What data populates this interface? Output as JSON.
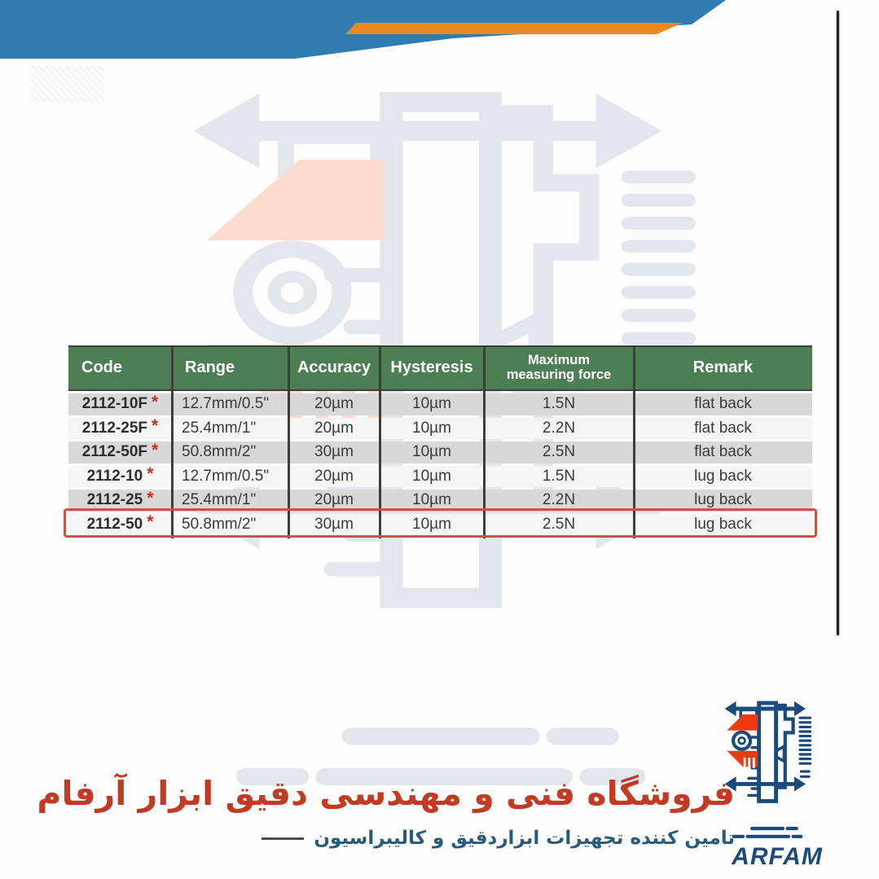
{
  "spec_table": {
    "columns": [
      {
        "key": "code",
        "label": "Code"
      },
      {
        "key": "range",
        "label": "Range"
      },
      {
        "key": "accuracy",
        "label": "Accuracy"
      },
      {
        "key": "hysteresis",
        "label": "Hysteresis"
      },
      {
        "key": "force",
        "label": "Maximum measuring force"
      },
      {
        "key": "remark",
        "label": "Remark"
      }
    ],
    "code_star": "*",
    "rows": [
      {
        "code": "2112-10F",
        "range": "12.7mm/0.5\"",
        "accuracy": "20µm",
        "hysteresis": "10µm",
        "force": "1.5N",
        "remark": "flat back",
        "highlighted": false
      },
      {
        "code": "2112-25F",
        "range": "25.4mm/1\"",
        "accuracy": "20µm",
        "hysteresis": "10µm",
        "force": "2.2N",
        "remark": "flat back",
        "highlighted": false
      },
      {
        "code": "2112-50F",
        "range": "50.8mm/2\"",
        "accuracy": "30µm",
        "hysteresis": "10µm",
        "force": "2.5N",
        "remark": "flat back",
        "highlighted": false
      },
      {
        "code": "2112-10",
        "range": "12.7mm/0.5\"",
        "accuracy": "20µm",
        "hysteresis": "10µm",
        "force": "1.5N",
        "remark": "lug back",
        "highlighted": false
      },
      {
        "code": "2112-25",
        "range": "25.4mm/1\"",
        "accuracy": "20µm",
        "hysteresis": "10µm",
        "force": "2.2N",
        "remark": "lug back",
        "highlighted": false
      },
      {
        "code": "2112-50",
        "range": "50.8mm/2\"",
        "accuracy": "30µm",
        "hysteresis": "10µm",
        "force": "2.5N",
        "remark": "lug back",
        "highlighted": true
      }
    ]
  },
  "footer": {
    "store_title_fa": "فروشگاه فنی و مهندسی دقیق ابزار آرفام",
    "store_subtitle_fa": "تامین کننده تجهیزات ابزاردقیق و کالیبراسیون",
    "brand_name": "ARFAM"
  },
  "colors": {
    "banner_blue": "#2e7cb0",
    "banner_orange": "#ea8a1e",
    "header_green": "#4c7f54",
    "row_gray": "#d8d8d8",
    "row_light": "#f5f5f5",
    "star_red": "#d42b1e",
    "highlight_red": "#cd5246",
    "title_red": "#c23a22",
    "subtitle_blue": "#2a5b78",
    "logo_blue": "#1b4b7c",
    "logo_red": "#ee3a10",
    "wm_ink": "#e2e7ee",
    "wm_accent": "#fcdccd"
  }
}
